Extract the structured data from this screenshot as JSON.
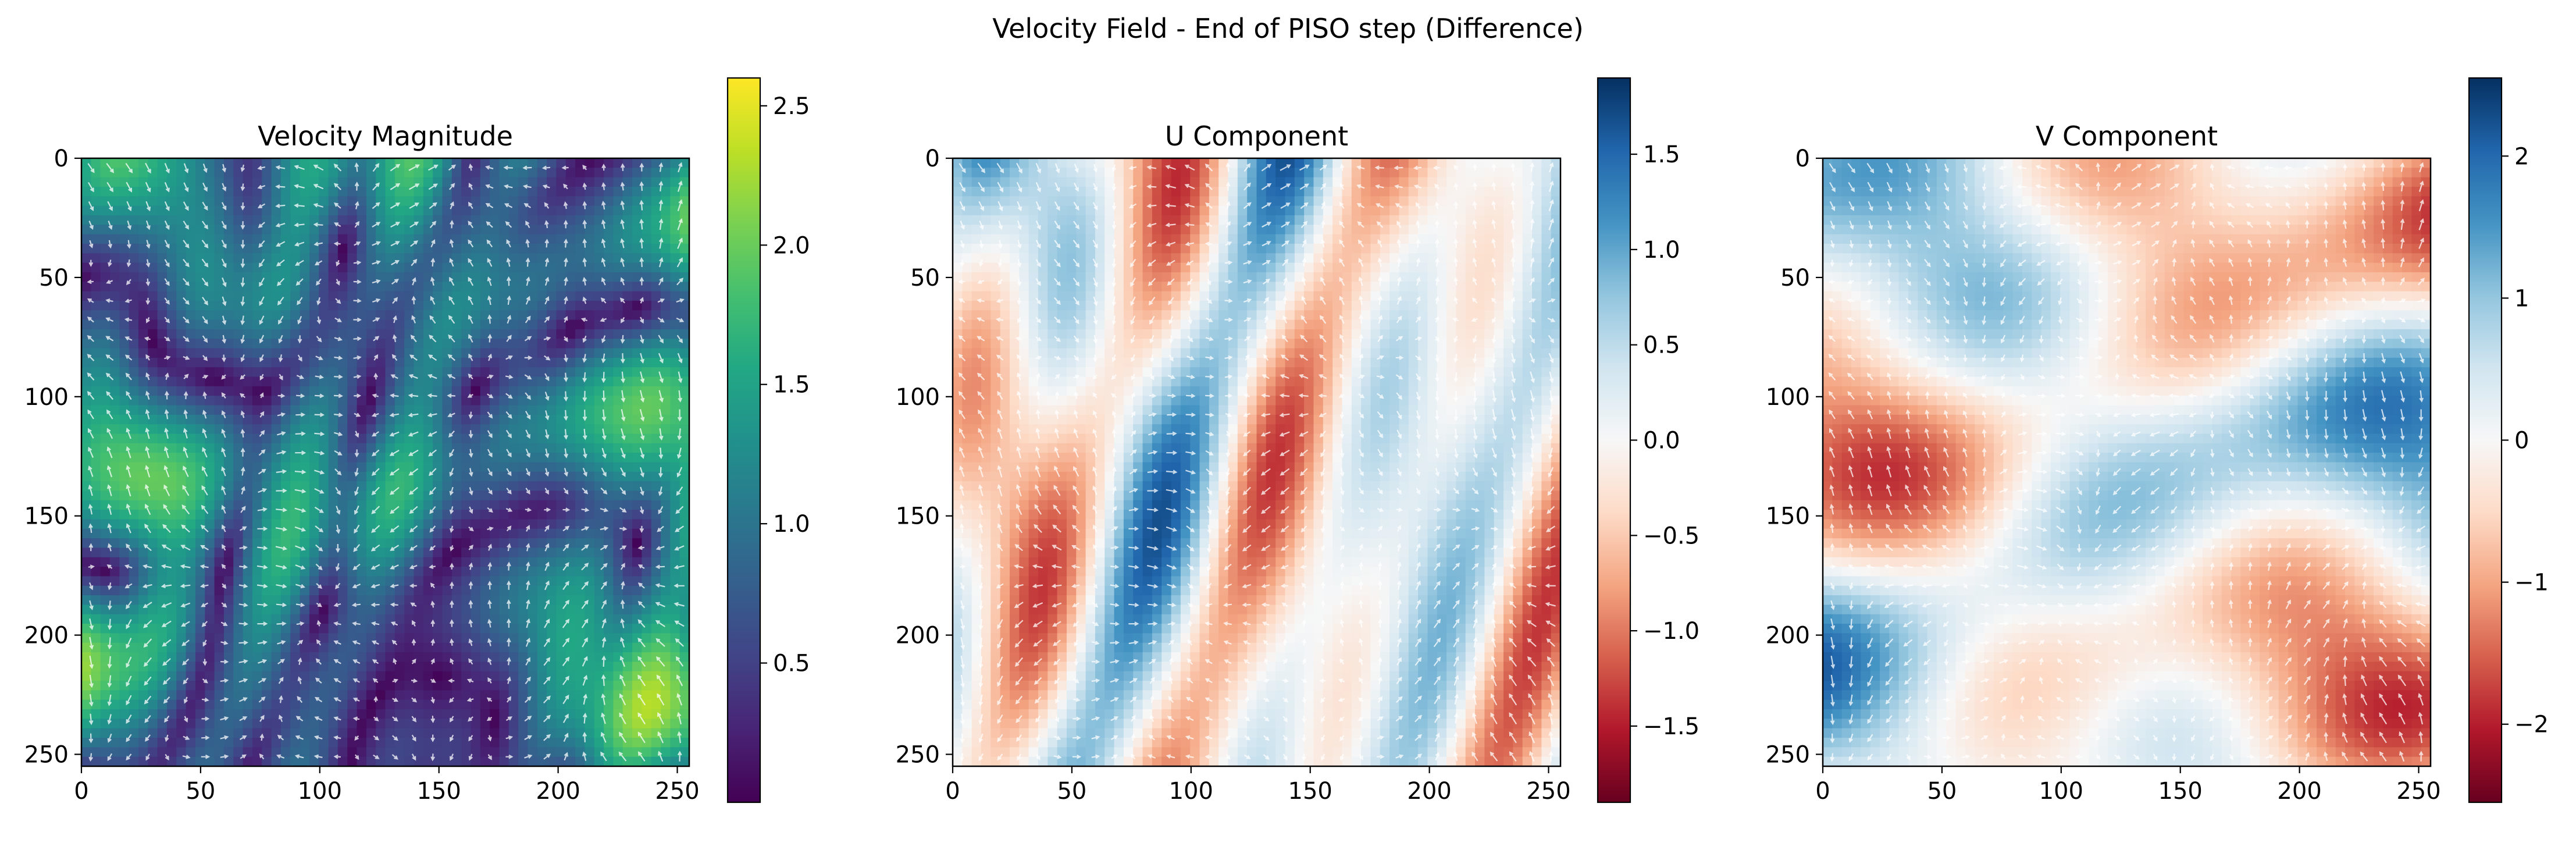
{
  "figure": {
    "suptitle": "Velocity Field - End of PISO step (Difference)"
  },
  "chart_data": [
    {
      "type": "heatmap",
      "title": "Velocity Magnitude",
      "colormap": "viridis",
      "xlim": [
        0,
        255
      ],
      "ylim": [
        255,
        0
      ],
      "xticks": [
        0,
        50,
        100,
        150,
        200,
        250
      ],
      "yticks": [
        0,
        50,
        100,
        150,
        200,
        250
      ],
      "colorbar": {
        "range": [
          0.0,
          2.6
        ],
        "ticks": [
          0.5,
          1.0,
          1.5,
          2.0,
          2.5
        ],
        "tick_labels": [
          "0.5",
          "1.0",
          "1.5",
          "2.0",
          "2.5"
        ]
      },
      "overlay": "white quiver arrows",
      "colors": {
        "low": "#440154",
        "mid": "#21918c",
        "high": "#fde725"
      }
    },
    {
      "type": "heatmap",
      "title": "U Component",
      "colormap": "RdBu",
      "xlim": [
        0,
        255
      ],
      "ylim": [
        255,
        0
      ],
      "xticks": [
        0,
        50,
        100,
        150,
        200,
        250
      ],
      "yticks": [
        0,
        50,
        100,
        150,
        200,
        250
      ],
      "colorbar": {
        "range": [
          -1.9,
          1.9
        ],
        "ticks": [
          -1.5,
          -1.0,
          -0.5,
          0.0,
          0.5,
          1.0,
          1.5
        ],
        "tick_labels": [
          "−1.5",
          "−1.0",
          "−0.5",
          "0.0",
          "0.5",
          "1.0",
          "1.5"
        ]
      },
      "overlay": "white quiver arrows",
      "colors": {
        "low": "#67001f",
        "mid": "#f7f7f7",
        "high": "#053061"
      }
    },
    {
      "type": "heatmap",
      "title": "V Component",
      "colormap": "RdBu",
      "xlim": [
        0,
        255
      ],
      "ylim": [
        255,
        0
      ],
      "xticks": [
        0,
        50,
        100,
        150,
        200,
        250
      ],
      "yticks": [
        0,
        50,
        100,
        150,
        200,
        250
      ],
      "colorbar": {
        "range": [
          -2.55,
          2.55
        ],
        "ticks": [
          -2,
          -1,
          0,
          1,
          2
        ],
        "tick_labels": [
          "−2",
          "−1",
          "0",
          "1",
          "2"
        ]
      },
      "overlay": "white quiver arrows",
      "colors": {
        "low": "#67001f",
        "mid": "#f7f7f7",
        "high": "#053061"
      }
    }
  ]
}
